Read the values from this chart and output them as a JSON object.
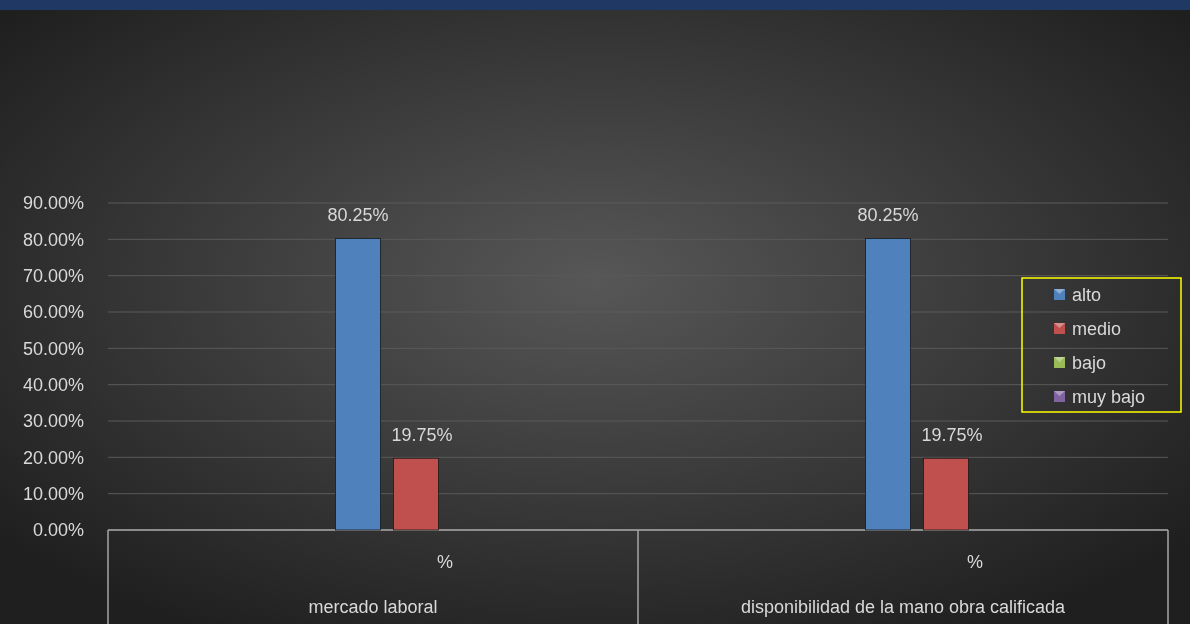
{
  "chart_data": {
    "type": "bar",
    "categories": [
      "%",
      "%"
    ],
    "annotations": [
      "mercado laboral",
      "disponibilidad de la mano obra calificada"
    ],
    "series": [
      {
        "name": "alto",
        "color": "#4f81bd",
        "values": [
          80.25,
          80.25
        ],
        "value_labels": [
          "80.25%",
          "80.25%"
        ]
      },
      {
        "name": "medio",
        "color": "#c0504d",
        "values": [
          19.75,
          19.75
        ],
        "value_labels": [
          "19.75%",
          "19.75%"
        ]
      },
      {
        "name": "bajo",
        "color": "#9bbb59",
        "values": [
          null,
          null
        ]
      },
      {
        "name": "muy bajo",
        "color": "#8064a2",
        "values": [
          null,
          null
        ]
      }
    ],
    "ylim": [
      0,
      90
    ],
    "yticks": [
      {
        "value": 0,
        "label": "0.00%"
      },
      {
        "value": 10,
        "label": "10.00%"
      },
      {
        "value": 20,
        "label": "20.00%"
      },
      {
        "value": 30,
        "label": "30.00%"
      },
      {
        "value": 40,
        "label": "40.00%"
      },
      {
        "value": 50,
        "label": "50.00%"
      },
      {
        "value": 60,
        "label": "60.00%"
      },
      {
        "value": 70,
        "label": "70.00%"
      },
      {
        "value": 80,
        "label": "80.00%"
      },
      {
        "value": 90,
        "label": "90.00%"
      }
    ],
    "grid": "y",
    "legend": "right"
  }
}
